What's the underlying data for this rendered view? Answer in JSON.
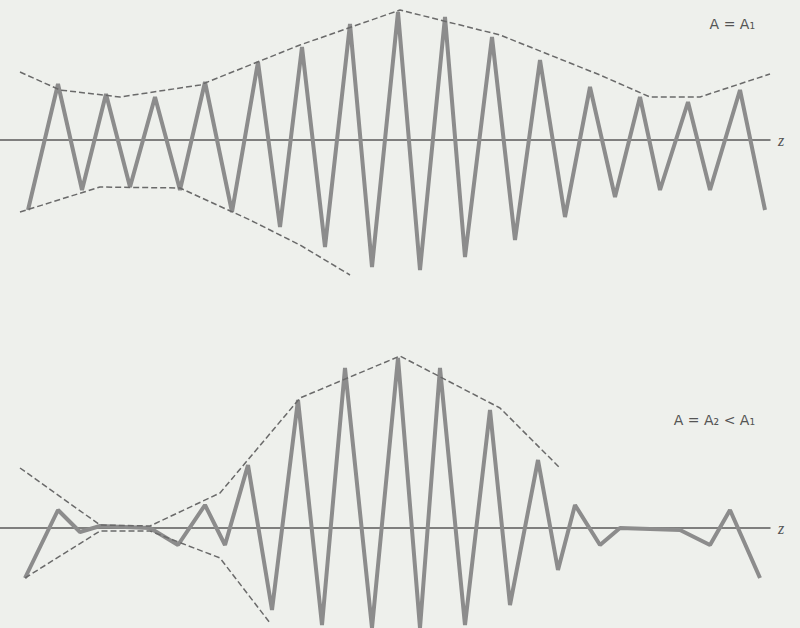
{
  "chart_data": [
    {
      "type": "line",
      "annotation": "A = A₁",
      "xlabel": "z",
      "xlim": [
        0,
        77
      ],
      "ylim": [
        -14,
        14
      ],
      "tick_labels": false,
      "grid": false,
      "series": [
        {
          "color": "#8c8c8c",
          "line_style": "solid",
          "marker": "none",
          "x": [
            2.8,
            5.8,
            8.2,
            10.6,
            13.0,
            15.5,
            18.0,
            20.5,
            23.2,
            25.8,
            28.0,
            30.2,
            32.5,
            35.0,
            37.2,
            39.8,
            42.0,
            44.5,
            46.5,
            49.2,
            51.5,
            54.0,
            56.5,
            59.0,
            61.5,
            64.0,
            66.0,
            68.8,
            71.0,
            74.0,
            76.5
          ],
          "values": [
            -7.0,
            5.6,
            -5.0,
            4.6,
            -4.7,
            4.3,
            -5.0,
            5.8,
            -7.2,
            7.8,
            -8.7,
            9.3,
            -10.7,
            11.6,
            -12.7,
            12.8,
            -13.0,
            12.3,
            -11.7,
            10.3,
            -10.0,
            8.0,
            -7.7,
            5.3,
            -5.7,
            4.3,
            -5.0,
            3.8,
            -5.0,
            5.0,
            -7.0
          ]
        },
        {
          "color": "#6a6a6a",
          "line_style": "dashed",
          "marker": "none",
          "x": [
            2.0,
            6.0,
            12.0,
            20.0,
            30.0,
            40.0,
            50.0,
            60.0,
            65.0,
            70.0,
            77.0
          ],
          "values": [
            6.8,
            5.0,
            4.3,
            5.5,
            9.5,
            13.0,
            10.5,
            6.5,
            4.3,
            4.3,
            6.6
          ]
        },
        {
          "color": "#6a6a6a",
          "line_style": "dashed",
          "marker": "none",
          "x": [
            2.0,
            10.0,
            18.0,
            25.0,
            30.0,
            35.0
          ],
          "values": [
            -7.2,
            -4.7,
            -4.8,
            -8.0,
            -10.5,
            -13.5
          ]
        }
      ]
    },
    {
      "type": "line",
      "annotation": "A = A₂ < A₁",
      "xlabel": "z",
      "xlim": [
        0,
        77
      ],
      "ylim": [
        -10,
        18
      ],
      "tick_labels": false,
      "grid": false,
      "series": [
        {
          "color": "#8c8c8c",
          "line_style": "solid",
          "marker": "none",
          "x": [
            2.5,
            5.8,
            8.0,
            10.0,
            15.0,
            17.8,
            20.5,
            22.5,
            24.8,
            27.2,
            29.8,
            32.2,
            34.5,
            37.2,
            39.8,
            42.0,
            44.0,
            46.5,
            49.0,
            51.0,
            53.8,
            55.8,
            57.5,
            60.0,
            62.0,
            68.0,
            71.0,
            73.0,
            76.0
          ],
          "values": [
            -5.0,
            1.8,
            -0.4,
            0.2,
            0.0,
            -1.7,
            2.3,
            -1.7,
            6.3,
            -8.2,
            12.8,
            -9.7,
            16.0,
            -10.0,
            17.0,
            -10.0,
            16.0,
            -9.7,
            11.8,
            -7.7,
            6.8,
            -4.2,
            2.3,
            -1.7,
            0.0,
            -0.2,
            -1.7,
            1.8,
            -5.0
          ]
        },
        {
          "color": "#6a6a6a",
          "line_style": "dashed",
          "marker": "none",
          "x": [
            2.0,
            10.0,
            15.0,
            22.0,
            30.0,
            40.0,
            50.0,
            56.0
          ],
          "values": [
            6.0,
            0.3,
            0.2,
            3.5,
            13.0,
            17.2,
            12.0,
            6.0
          ]
        },
        {
          "color": "#6a6a6a",
          "line_style": "dashed",
          "marker": "none",
          "x": [
            2.5,
            10.0,
            15.0,
            22.0,
            27.0
          ],
          "values": [
            -5.0,
            -0.3,
            -0.3,
            -3.0,
            -9.5
          ]
        }
      ]
    }
  ]
}
